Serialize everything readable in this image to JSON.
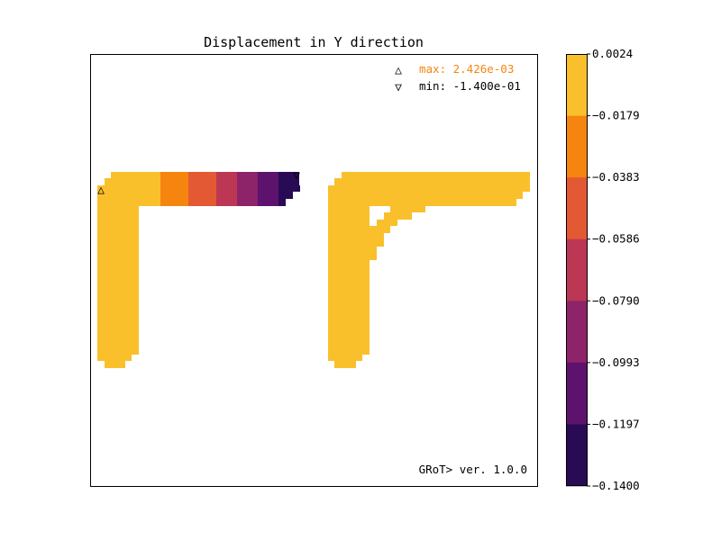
{
  "chart_data": {
    "type": "heatmap",
    "title": "Displacement in Y direction",
    "colormap": "inferno",
    "colorbar": {
      "range": [
        -0.14,
        0.0024
      ],
      "ticks": [
        "0.0024",
        "−0.0179",
        "−0.0383",
        "−0.0586",
        "−0.0790",
        "−0.0993",
        "−0.1197",
        "−0.1400"
      ],
      "bands": [
        {
          "from": 0.0024,
          "to": -0.0179,
          "color": "#f9c02c"
        },
        {
          "from": -0.0179,
          "to": -0.0383,
          "color": "#f6850f"
        },
        {
          "from": -0.0383,
          "to": -0.0586,
          "color": "#e35933"
        },
        {
          "from": -0.0586,
          "to": -0.079,
          "color": "#bb3754"
        },
        {
          "from": -0.079,
          "to": -0.0993,
          "color": "#8d2369"
        },
        {
          "from": -0.0993,
          "to": -0.1197,
          "color": "#5d126e"
        },
        {
          "from": -0.1197,
          "to": -0.14,
          "color": "#280b54"
        }
      ]
    },
    "annotations": {
      "max_label": "max:  2.426e-03",
      "min_label": "min: -1.400e-01",
      "max_color": "#f6850f",
      "min_color": "#000000",
      "max_marker": "△",
      "min_marker": "▽",
      "footer": "GRoT> ver. 1.0.0"
    },
    "bar_band_indices": [
      0,
      1,
      2,
      3,
      4,
      5,
      6
    ],
    "grid": false
  }
}
